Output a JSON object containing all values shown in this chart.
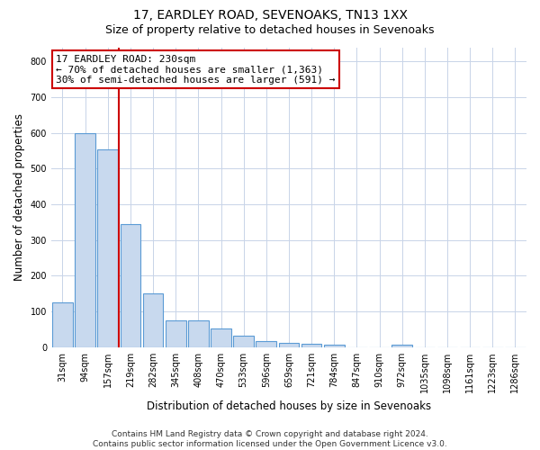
{
  "title": "17, EARDLEY ROAD, SEVENOAKS, TN13 1XX",
  "subtitle": "Size of property relative to detached houses in Sevenoaks",
  "xlabel": "Distribution of detached houses by size in Sevenoaks",
  "ylabel": "Number of detached properties",
  "bar_labels": [
    "31sqm",
    "94sqm",
    "157sqm",
    "219sqm",
    "282sqm",
    "345sqm",
    "408sqm",
    "470sqm",
    "533sqm",
    "596sqm",
    "659sqm",
    "721sqm",
    "784sqm",
    "847sqm",
    "910sqm",
    "972sqm",
    "1035sqm",
    "1098sqm",
    "1161sqm",
    "1223sqm",
    "1286sqm"
  ],
  "bar_values": [
    125,
    600,
    555,
    345,
    150,
    75,
    75,
    52,
    32,
    17,
    13,
    10,
    7,
    0,
    0,
    8,
    0,
    0,
    0,
    0,
    0
  ],
  "bar_color": "#c8d9ee",
  "bar_edge_color": "#5b9bd5",
  "vline_color": "#cc0000",
  "vline_x": 2.5,
  "annotation_text": "17 EARDLEY ROAD: 230sqm\n← 70% of detached houses are smaller (1,363)\n30% of semi-detached houses are larger (591) →",
  "annotation_box_color": "#cc0000",
  "ylim": [
    0,
    840
  ],
  "yticks": [
    0,
    100,
    200,
    300,
    400,
    500,
    600,
    700,
    800
  ],
  "footer_line1": "Contains HM Land Registry data © Crown copyright and database right 2024.",
  "footer_line2": "Contains public sector information licensed under the Open Government Licence v3.0.",
  "bg_color": "#ffffff",
  "grid_color": "#c8d4e8",
  "title_fontsize": 10,
  "subtitle_fontsize": 9,
  "axis_label_fontsize": 8.5,
  "tick_fontsize": 7,
  "footer_fontsize": 6.5,
  "annotation_fontsize": 8
}
